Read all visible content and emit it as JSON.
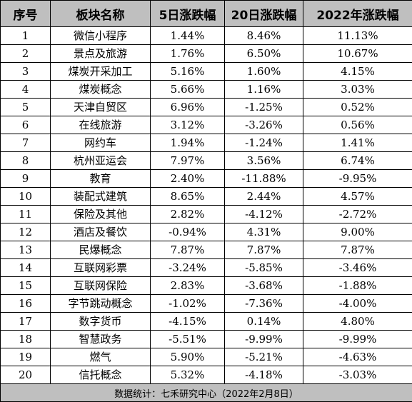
{
  "table": {
    "headers": [
      "序号",
      "板块名称",
      "5日涨跌幅",
      "20日涨跌幅",
      "2022年涨跌幅"
    ],
    "rows": [
      [
        "1",
        "微信小程序",
        "1.44%",
        "8.46%",
        "11.13%"
      ],
      [
        "2",
        "景点及旅游",
        "1.76%",
        "6.50%",
        "10.67%"
      ],
      [
        "3",
        "煤炭开采加工",
        "5.16%",
        "1.60%",
        "4.15%"
      ],
      [
        "4",
        "煤炭概念",
        "5.66%",
        "1.16%",
        "3.03%"
      ],
      [
        "5",
        "天津自贸区",
        "6.96%",
        "-1.25%",
        "0.52%"
      ],
      [
        "6",
        "在线旅游",
        "3.12%",
        "-3.26%",
        "0.56%"
      ],
      [
        "7",
        "网约车",
        "1.94%",
        "-1.24%",
        "1.41%"
      ],
      [
        "8",
        "杭州亚运会",
        "7.97%",
        "3.56%",
        "6.74%"
      ],
      [
        "9",
        "教育",
        "2.40%",
        "-11.88%",
        "-9.95%"
      ],
      [
        "10",
        "装配式建筑",
        "8.65%",
        "2.44%",
        "4.57%"
      ],
      [
        "11",
        "保险及其他",
        "2.82%",
        "-4.12%",
        "-2.72%"
      ],
      [
        "12",
        "酒店及餐饮",
        "-0.94%",
        "4.31%",
        "9.00%"
      ],
      [
        "13",
        "民爆概念",
        "7.87%",
        "7.87%",
        "7.87%"
      ],
      [
        "14",
        "互联网彩票",
        "-3.24%",
        "-5.85%",
        "-3.46%"
      ],
      [
        "15",
        "互联网保险",
        "2.83%",
        "-3.68%",
        "-1.88%"
      ],
      [
        "16",
        "字节跳动概念",
        "-1.02%",
        "-7.36%",
        "-4.00%"
      ],
      [
        "17",
        "数字货币",
        "-4.15%",
        "0.14%",
        "4.80%"
      ],
      [
        "18",
        "智慧政务",
        "-5.51%",
        "-9.99%",
        "-9.99%"
      ],
      [
        "19",
        "燃气",
        "5.90%",
        "-5.21%",
        "-4.63%"
      ],
      [
        "20",
        "信托概念",
        "5.32%",
        "-4.18%",
        "-3.03%"
      ]
    ],
    "footer": "数据统计：七禾研究中心（2022年2月8日）"
  }
}
